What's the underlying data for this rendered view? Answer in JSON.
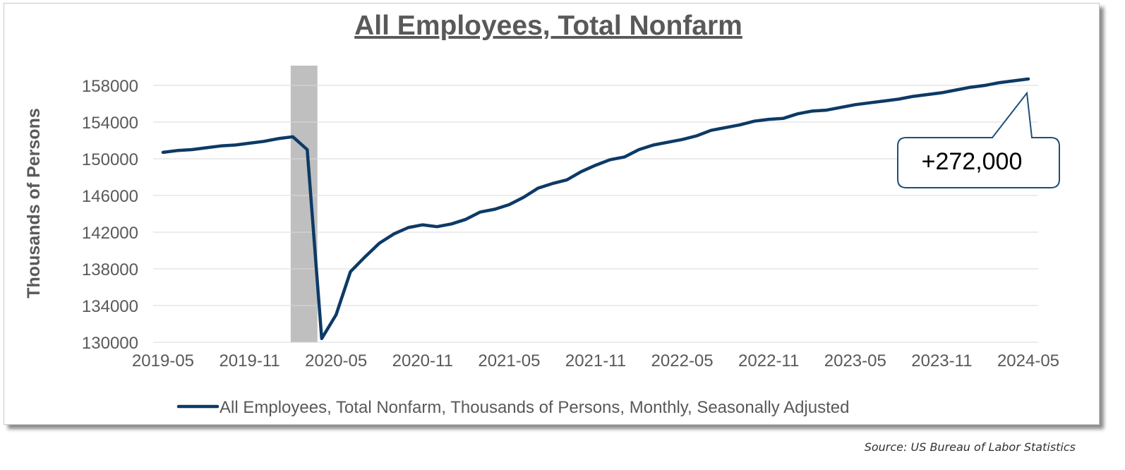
{
  "chart_data": {
    "type": "line",
    "title": "All Employees, Total Nonfarm",
    "ylabel": "Thousands of Persons",
    "xlabel": "",
    "ylim": [
      130000,
      160000
    ],
    "yticks": [
      "130000",
      "134000",
      "138000",
      "142000",
      "146000",
      "150000",
      "154000",
      "158000"
    ],
    "xticks": [
      "2019-05",
      "2019-11",
      "2020-05",
      "2020-11",
      "2021-05",
      "2021-11",
      "2022-05",
      "2022-11",
      "2023-05",
      "2023-11",
      "2024-05"
    ],
    "x": [
      "2019-05",
      "2019-06",
      "2019-07",
      "2019-08",
      "2019-09",
      "2019-10",
      "2019-11",
      "2019-12",
      "2020-01",
      "2020-02",
      "2020-03",
      "2020-04",
      "2020-05",
      "2020-06",
      "2020-07",
      "2020-08",
      "2020-09",
      "2020-10",
      "2020-11",
      "2020-12",
      "2021-01",
      "2021-02",
      "2021-03",
      "2021-04",
      "2021-05",
      "2021-06",
      "2021-07",
      "2021-08",
      "2021-09",
      "2021-10",
      "2021-11",
      "2021-12",
      "2022-01",
      "2022-02",
      "2022-03",
      "2022-04",
      "2022-05",
      "2022-06",
      "2022-07",
      "2022-08",
      "2022-09",
      "2022-10",
      "2022-11",
      "2022-12",
      "2023-01",
      "2023-02",
      "2023-03",
      "2023-04",
      "2023-05",
      "2023-06",
      "2023-07",
      "2023-08",
      "2023-09",
      "2023-10",
      "2023-11",
      "2023-12",
      "2024-01",
      "2024-02",
      "2024-03",
      "2024-04",
      "2024-05"
    ],
    "series": [
      {
        "name": "All Employees, Total Nonfarm, Thousands of Persons, Monthly, Seasonally Adjusted",
        "color": "#0d3a66",
        "values": [
          150700,
          150900,
          151000,
          151200,
          151400,
          151500,
          151700,
          151900,
          152200,
          152400,
          151000,
          130400,
          133000,
          137700,
          139300,
          140800,
          141800,
          142500,
          142800,
          142600,
          142900,
          143400,
          144200,
          144500,
          145000,
          145800,
          146800,
          147300,
          147700,
          148600,
          149300,
          149900,
          150200,
          151000,
          151500,
          151800,
          152100,
          152500,
          153100,
          153400,
          153700,
          154100,
          154300,
          154400,
          154900,
          155200,
          155300,
          155600,
          155900,
          156100,
          156300,
          156500,
          156800,
          157000,
          157200,
          157500,
          157800,
          158000,
          158300,
          158500,
          158700
        ]
      }
    ],
    "shaded_regions": [
      {
        "start": "2020-02",
        "end": "2020-04",
        "color": "#bfbfbf"
      }
    ],
    "annotation": {
      "text": "+272,000",
      "target": "2024-05",
      "box_border": "#1f4e79"
    },
    "grid": "horizontal",
    "legend": "bottom"
  },
  "source": "Source: US Bureau of Labor Statistics"
}
